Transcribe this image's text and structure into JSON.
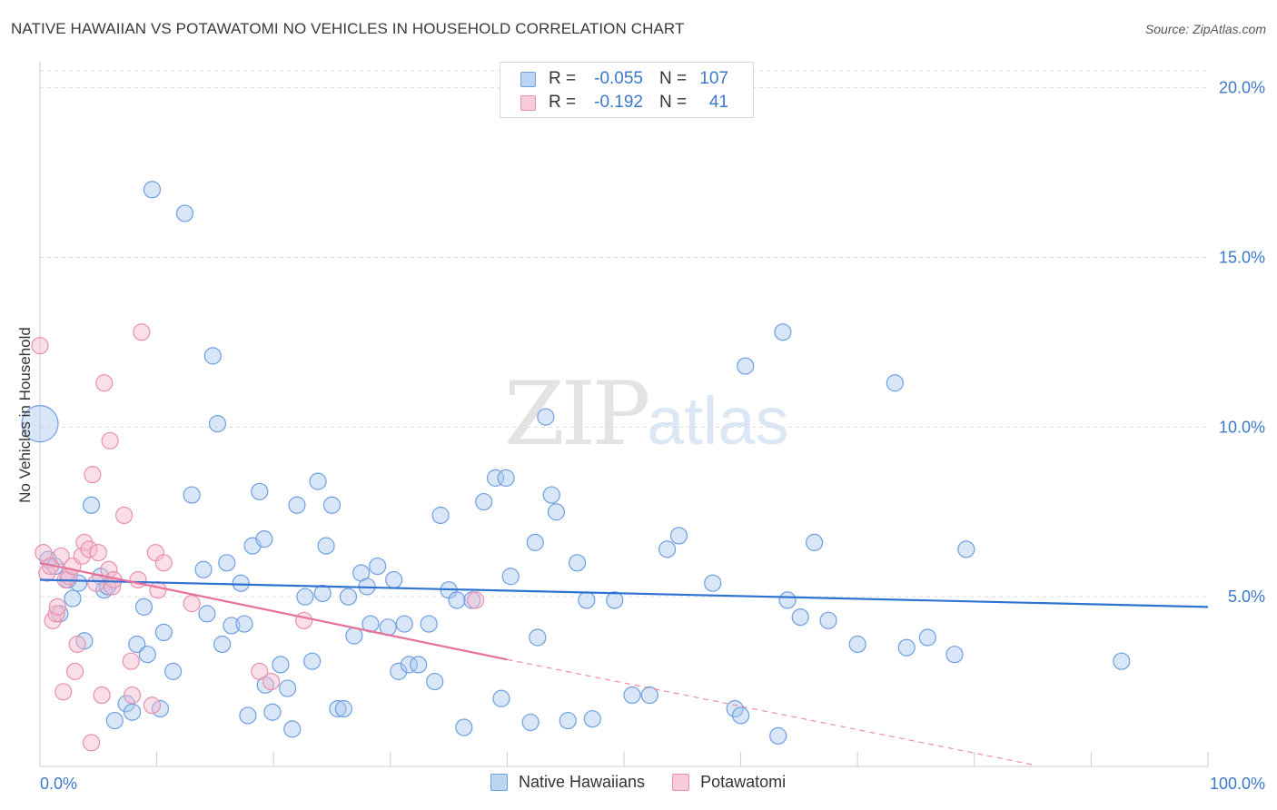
{
  "title": "NATIVE HAWAIIAN VS POTAWATOMI NO VEHICLES IN HOUSEHOLD CORRELATION CHART",
  "source": "Source: ZipAtlas.com",
  "watermark": {
    "zip": "ZIP",
    "atlas": "atlas"
  },
  "legend": {
    "r_label": "R =",
    "n_label": "N =",
    "rows": [
      {
        "name": "Native Hawaiians",
        "r": "-0.055",
        "n": "107",
        "color": "#a8c8f0",
        "stroke": "#6f9fe0"
      },
      {
        "name": "Potawatomi",
        "r": "-0.192",
        "n": "41",
        "color": "#f6b8cb",
        "stroke": "#e890ad"
      }
    ]
  },
  "chart_data": {
    "type": "scatter",
    "title": "NATIVE HAWAIIAN VS POTAWATOMI NO VEHICLES IN HOUSEHOLD CORRELATION CHART",
    "xlabel": "",
    "ylabel": "No Vehicles in Household",
    "xlim": [
      0,
      100
    ],
    "ylim": [
      0,
      20.5
    ],
    "x_tick_labels": [
      "0.0%",
      "100.0%"
    ],
    "y_ticks": [
      5,
      10,
      15,
      20
    ],
    "y_tick_labels": [
      "5.0%",
      "10.0%",
      "15.0%",
      "20.0%"
    ],
    "series": [
      {
        "name": "Native Hawaiians",
        "color": "#a8c8f0",
        "stroke": "#6f9fe0",
        "trend": {
          "x0": 0,
          "y0": 5.5,
          "x1": 100,
          "y1": 4.7,
          "color": "#2e72d2"
        },
        "points": [
          [
            0,
            10.1
          ],
          [
            0.7,
            6.1
          ],
          [
            1.3,
            5.9
          ],
          [
            1.7,
            4.5
          ],
          [
            2.4,
            5.5
          ],
          [
            2.8,
            4.95
          ],
          [
            3.3,
            5.4
          ],
          [
            3.8,
            3.7
          ],
          [
            4.4,
            7.7
          ],
          [
            5.2,
            5.6
          ],
          [
            5.5,
            5.2
          ],
          [
            5.8,
            5.3
          ],
          [
            6.4,
            1.35
          ],
          [
            7.4,
            1.85
          ],
          [
            7.9,
            1.6
          ],
          [
            8.3,
            3.6
          ],
          [
            8.9,
            4.7
          ],
          [
            9.2,
            3.3
          ],
          [
            9.6,
            17.0
          ],
          [
            10.3,
            1.7
          ],
          [
            10.6,
            3.95
          ],
          [
            11.4,
            2.8
          ],
          [
            12.4,
            16.3
          ],
          [
            13.0,
            8.0
          ],
          [
            14.0,
            5.8
          ],
          [
            14.3,
            4.5
          ],
          [
            14.8,
            12.1
          ],
          [
            15.2,
            10.1
          ],
          [
            15.6,
            3.6
          ],
          [
            16.0,
            6.0
          ],
          [
            16.4,
            4.15
          ],
          [
            17.2,
            5.4
          ],
          [
            17.5,
            4.2
          ],
          [
            17.8,
            1.5
          ],
          [
            18.2,
            6.5
          ],
          [
            18.8,
            8.1
          ],
          [
            19.2,
            6.7
          ],
          [
            19.3,
            2.4
          ],
          [
            19.9,
            1.6
          ],
          [
            20.6,
            3.0
          ],
          [
            21.2,
            2.3
          ],
          [
            21.6,
            1.1
          ],
          [
            22.0,
            7.7
          ],
          [
            22.7,
            5.0
          ],
          [
            23.3,
            3.1
          ],
          [
            23.8,
            8.4
          ],
          [
            24.2,
            5.1
          ],
          [
            24.5,
            6.5
          ],
          [
            25.0,
            7.7
          ],
          [
            25.5,
            1.7
          ],
          [
            26.0,
            1.7
          ],
          [
            26.4,
            5.0
          ],
          [
            26.9,
            3.85
          ],
          [
            27.5,
            5.7
          ],
          [
            28.0,
            5.3
          ],
          [
            28.3,
            4.2
          ],
          [
            28.9,
            5.9
          ],
          [
            29.8,
            4.1
          ],
          [
            30.3,
            5.5
          ],
          [
            30.7,
            2.8
          ],
          [
            31.2,
            4.2
          ],
          [
            31.6,
            3.0
          ],
          [
            32.4,
            3.0
          ],
          [
            33.3,
            4.2
          ],
          [
            33.8,
            2.5
          ],
          [
            34.3,
            7.4
          ],
          [
            35.0,
            5.2
          ],
          [
            35.7,
            4.9
          ],
          [
            36.3,
            1.15
          ],
          [
            37.0,
            4.9
          ],
          [
            38.0,
            7.8
          ],
          [
            39.0,
            8.5
          ],
          [
            39.5,
            2.0
          ],
          [
            39.9,
            8.5
          ],
          [
            40.3,
            5.6
          ],
          [
            42.0,
            1.3
          ],
          [
            42.4,
            6.6
          ],
          [
            42.6,
            3.8
          ],
          [
            43.3,
            10.3
          ],
          [
            43.8,
            8.0
          ],
          [
            44.2,
            7.5
          ],
          [
            45.2,
            1.35
          ],
          [
            46.0,
            6.0
          ],
          [
            46.8,
            4.9
          ],
          [
            47.3,
            1.4
          ],
          [
            49.2,
            4.9
          ],
          [
            50.7,
            2.1
          ],
          [
            52.2,
            2.1
          ],
          [
            53.7,
            6.4
          ],
          [
            54.7,
            6.8
          ],
          [
            57.6,
            5.4
          ],
          [
            59.5,
            1.7
          ],
          [
            60.0,
            1.5
          ],
          [
            60.4,
            11.8
          ],
          [
            63.2,
            0.9
          ],
          [
            63.6,
            12.8
          ],
          [
            64.0,
            4.9
          ],
          [
            65.1,
            4.4
          ],
          [
            66.3,
            6.6
          ],
          [
            67.5,
            4.3
          ],
          [
            70.0,
            3.6
          ],
          [
            73.2,
            11.3
          ],
          [
            74.2,
            3.5
          ],
          [
            76.0,
            3.8
          ],
          [
            78.3,
            3.3
          ],
          [
            79.3,
            6.4
          ],
          [
            92.6,
            3.1
          ]
        ]
      },
      {
        "name": "Potawatomi",
        "color": "#f6b8cb",
        "stroke": "#e890ad",
        "trend": {
          "x0": 0,
          "y0": 6.0,
          "x1": 40,
          "y1": 3.15,
          "color": "#e8709a"
        },
        "trend_dashed": {
          "x0": 40,
          "y0": 3.15,
          "x1": 85,
          "y1": 0.05
        },
        "points": [
          [
            0,
            12.4
          ],
          [
            0.3,
            6.3
          ],
          [
            0.6,
            5.7
          ],
          [
            0.9,
            5.9
          ],
          [
            1.1,
            4.3
          ],
          [
            1.4,
            4.5
          ],
          [
            1.5,
            4.7
          ],
          [
            1.8,
            6.2
          ],
          [
            2.0,
            2.2
          ],
          [
            2.2,
            5.5
          ],
          [
            2.5,
            5.6
          ],
          [
            2.8,
            5.9
          ],
          [
            3.0,
            2.8
          ],
          [
            3.2,
            3.6
          ],
          [
            3.6,
            6.2
          ],
          [
            3.8,
            6.6
          ],
          [
            4.2,
            6.4
          ],
          [
            4.4,
            0.7
          ],
          [
            4.5,
            8.6
          ],
          [
            4.8,
            5.4
          ],
          [
            5.0,
            6.3
          ],
          [
            5.3,
            2.1
          ],
          [
            5.5,
            11.3
          ],
          [
            5.9,
            5.8
          ],
          [
            6.0,
            9.6
          ],
          [
            6.2,
            5.3
          ],
          [
            6.3,
            5.5
          ],
          [
            7.2,
            7.4
          ],
          [
            7.8,
            3.1
          ],
          [
            7.9,
            2.1
          ],
          [
            8.4,
            5.5
          ],
          [
            8.7,
            12.8
          ],
          [
            9.6,
            1.8
          ],
          [
            9.9,
            6.3
          ],
          [
            10.1,
            5.2
          ],
          [
            10.6,
            6.0
          ],
          [
            13.0,
            4.8
          ],
          [
            18.8,
            2.8
          ],
          [
            19.8,
            2.5
          ],
          [
            22.6,
            4.3
          ],
          [
            37.3,
            4.9
          ]
        ]
      }
    ]
  }
}
